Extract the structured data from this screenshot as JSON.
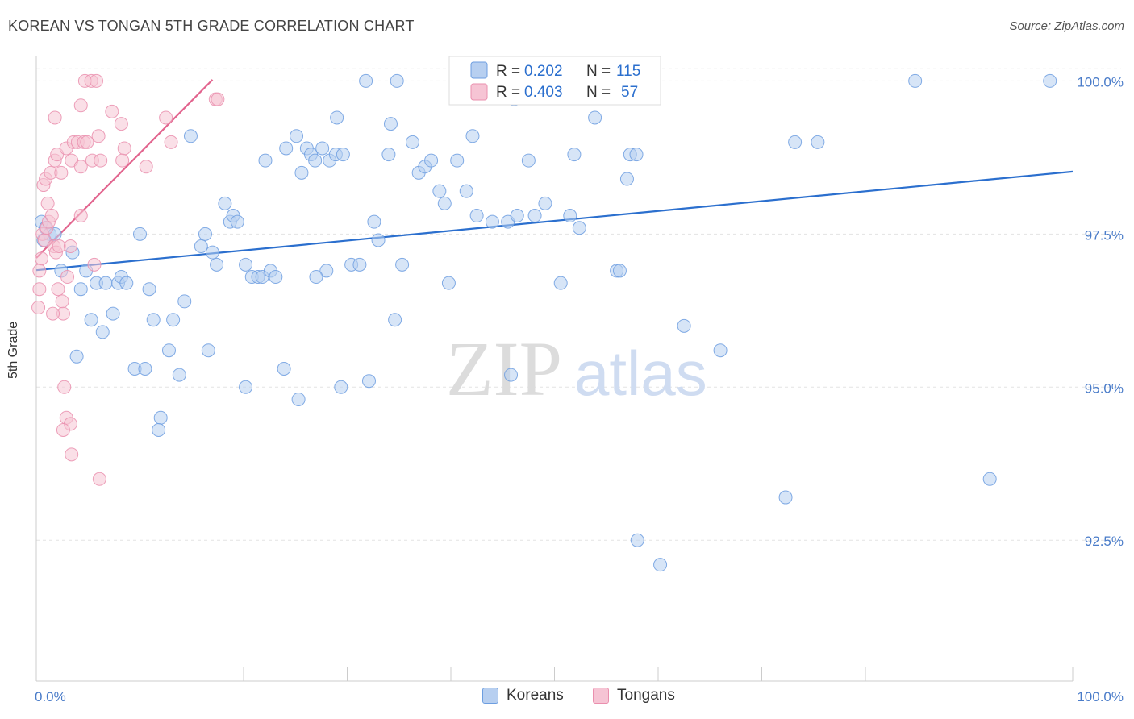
{
  "header": {
    "title": "KOREAN VS TONGAN 5TH GRADE CORRELATION CHART",
    "source": "Source: ZipAtlas.com"
  },
  "watermark": {
    "zip": "ZIP",
    "atlas": "atlas"
  },
  "colors": {
    "korean_fill": "#b7cff0",
    "korean_stroke": "#6d9ee0",
    "korean_line": "#2b6fce",
    "tongan_fill": "#f6c4d4",
    "tongan_stroke": "#ea8fae",
    "tongan_line": "#e2648e",
    "tick_text": "#4a7cc9"
  },
  "legend": {
    "korean": {
      "r_label": "R =",
      "r_value": "0.202",
      "n_label": "N =",
      "n_value": "115"
    },
    "tongan": {
      "r_label": "R =",
      "r_value": "0.403",
      "n_label": "N =",
      "n_value": "57"
    }
  },
  "bottom_legend": {
    "korean": "Koreans",
    "tongan": "Tongans"
  },
  "chart_data": {
    "type": "scatter",
    "title": "KOREAN VS TONGAN 5TH GRADE CORRELATION CHART",
    "xlabel": "",
    "ylabel": "5th Grade",
    "xlim": [
      0,
      100
    ],
    "ylim": [
      90.2,
      100.4
    ],
    "x_tick_labels": [
      "0.0%",
      "100.0%"
    ],
    "y_ticks": [
      92.5,
      95.0,
      97.5,
      100.0
    ],
    "y_tick_labels": [
      "92.5%",
      "95.0%",
      "97.5%",
      "100.0%"
    ],
    "grid": true,
    "legend_position": "top-center",
    "series": [
      {
        "name": "Koreans",
        "r": 0.202,
        "n": 115,
        "trend": {
          "x": [
            0.0,
            100.0
          ],
          "y": [
            96.91,
            98.52
          ]
        },
        "points": [
          [
            0.5,
            97.7
          ],
          [
            0.9,
            97.6
          ],
          [
            1.3,
            97.5
          ],
          [
            0.7,
            97.4
          ],
          [
            1.8,
            97.5
          ],
          [
            3.5,
            97.2
          ],
          [
            2.4,
            96.9
          ],
          [
            4.8,
            96.9
          ],
          [
            5.8,
            96.7
          ],
          [
            4.3,
            96.6
          ],
          [
            6.7,
            96.7
          ],
          [
            7.9,
            96.7
          ],
          [
            8.2,
            96.8
          ],
          [
            8.7,
            96.7
          ],
          [
            10.9,
            96.6
          ],
          [
            5.3,
            96.1
          ],
          [
            6.4,
            95.9
          ],
          [
            7.4,
            96.2
          ],
          [
            11.3,
            96.1
          ],
          [
            13.2,
            96.1
          ],
          [
            14.3,
            96.4
          ],
          [
            3.9,
            95.5
          ],
          [
            9.5,
            95.3
          ],
          [
            10.5,
            95.3
          ],
          [
            12.8,
            95.6
          ],
          [
            13.8,
            95.2
          ],
          [
            16.6,
            95.6
          ],
          [
            12.0,
            94.5
          ],
          [
            11.8,
            94.3
          ],
          [
            10.0,
            97.5
          ],
          [
            14.9,
            99.1
          ],
          [
            15.9,
            97.3
          ],
          [
            16.3,
            97.5
          ],
          [
            17.0,
            97.2
          ],
          [
            17.4,
            97.0
          ],
          [
            18.7,
            97.7
          ],
          [
            18.2,
            98.0
          ],
          [
            19.0,
            97.8
          ],
          [
            19.4,
            97.7
          ],
          [
            20.2,
            97.0
          ],
          [
            20.8,
            96.8
          ],
          [
            21.4,
            96.8
          ],
          [
            21.8,
            96.8
          ],
          [
            22.6,
            96.9
          ],
          [
            23.1,
            96.8
          ],
          [
            22.1,
            98.7
          ],
          [
            24.1,
            98.9
          ],
          [
            25.1,
            99.1
          ],
          [
            25.6,
            98.5
          ],
          [
            26.1,
            98.9
          ],
          [
            26.5,
            98.8
          ],
          [
            26.9,
            98.7
          ],
          [
            27.6,
            98.9
          ],
          [
            28.3,
            98.7
          ],
          [
            28.9,
            98.8
          ],
          [
            29.6,
            98.8
          ],
          [
            29.0,
            99.4
          ],
          [
            30.4,
            97.0
          ],
          [
            31.2,
            97.0
          ],
          [
            28.0,
            96.9
          ],
          [
            27.0,
            96.8
          ],
          [
            23.9,
            95.3
          ],
          [
            25.3,
            94.8
          ],
          [
            20.2,
            95.0
          ],
          [
            31.8,
            100.0
          ],
          [
            34.0,
            98.8
          ],
          [
            34.2,
            99.3
          ],
          [
            34.8,
            100.0
          ],
          [
            32.6,
            97.7
          ],
          [
            36.3,
            99.0
          ],
          [
            36.9,
            98.5
          ],
          [
            37.5,
            98.6
          ],
          [
            38.1,
            98.7
          ],
          [
            38.9,
            98.2
          ],
          [
            39.4,
            98.0
          ],
          [
            40.6,
            98.7
          ],
          [
            41.5,
            98.2
          ],
          [
            42.1,
            99.1
          ],
          [
            42.5,
            97.8
          ],
          [
            43.9,
            100.0
          ],
          [
            44.0,
            97.7
          ],
          [
            45.5,
            97.7
          ],
          [
            46.1,
            99.7
          ],
          [
            46.4,
            97.8
          ],
          [
            47.5,
            98.7
          ],
          [
            48.1,
            97.8
          ],
          [
            49.1,
            98.0
          ],
          [
            51.5,
            97.8
          ],
          [
            51.9,
            98.8
          ],
          [
            50.6,
            96.7
          ],
          [
            52.4,
            97.6
          ],
          [
            53.4,
            100.0
          ],
          [
            53.9,
            99.4
          ],
          [
            56.0,
            96.9
          ],
          [
            57.0,
            98.4
          ],
          [
            57.3,
            98.8
          ],
          [
            57.9,
            98.8
          ],
          [
            56.3,
            96.9
          ],
          [
            33.0,
            97.4
          ],
          [
            35.3,
            97.0
          ],
          [
            39.8,
            96.7
          ],
          [
            34.6,
            96.1
          ],
          [
            29.4,
            95.0
          ],
          [
            32.1,
            95.1
          ],
          [
            45.8,
            95.2
          ],
          [
            62.5,
            96.0
          ],
          [
            66.0,
            95.6
          ],
          [
            73.2,
            99.0
          ],
          [
            75.4,
            99.0
          ],
          [
            84.8,
            100.0
          ],
          [
            97.8,
            100.0
          ],
          [
            92.0,
            93.5
          ],
          [
            72.3,
            93.2
          ],
          [
            58.0,
            92.5
          ],
          [
            60.2,
            92.1
          ]
        ]
      },
      {
        "name": "Tongans",
        "r": 0.403,
        "n": 57,
        "trend": {
          "x": [
            0.0,
            17.0
          ],
          "y": [
            97.11,
            100.02
          ]
        },
        "points": [
          [
            0.2,
            96.3
          ],
          [
            0.3,
            96.6
          ],
          [
            0.3,
            96.9
          ],
          [
            0.5,
            97.1
          ],
          [
            0.6,
            97.5
          ],
          [
            0.8,
            97.4
          ],
          [
            1.0,
            97.6
          ],
          [
            1.2,
            97.7
          ],
          [
            1.5,
            97.8
          ],
          [
            1.7,
            97.3
          ],
          [
            1.9,
            97.2
          ],
          [
            2.2,
            97.3
          ],
          [
            2.1,
            96.6
          ],
          [
            2.5,
            96.4
          ],
          [
            2.6,
            96.2
          ],
          [
            1.6,
            96.2
          ],
          [
            3.0,
            96.8
          ],
          [
            0.7,
            98.3
          ],
          [
            0.9,
            98.4
          ],
          [
            1.1,
            98.0
          ],
          [
            1.4,
            98.5
          ],
          [
            1.8,
            98.7
          ],
          [
            2.0,
            98.8
          ],
          [
            2.4,
            98.5
          ],
          [
            2.9,
            98.9
          ],
          [
            3.4,
            98.7
          ],
          [
            3.6,
            99.0
          ],
          [
            4.0,
            99.0
          ],
          [
            4.3,
            98.6
          ],
          [
            4.6,
            99.0
          ],
          [
            4.9,
            99.0
          ],
          [
            5.4,
            98.7
          ],
          [
            6.0,
            99.1
          ],
          [
            6.2,
            98.7
          ],
          [
            7.3,
            99.5
          ],
          [
            8.2,
            99.3
          ],
          [
            8.5,
            98.9
          ],
          [
            8.3,
            98.7
          ],
          [
            10.6,
            98.6
          ],
          [
            12.5,
            99.4
          ],
          [
            13.0,
            99.0
          ],
          [
            3.3,
            97.3
          ],
          [
            4.3,
            97.8
          ],
          [
            5.6,
            97.0
          ],
          [
            4.7,
            100.0
          ],
          [
            5.3,
            100.0
          ],
          [
            5.8,
            100.0
          ],
          [
            4.3,
            99.6
          ],
          [
            1.8,
            99.4
          ],
          [
            17.3,
            99.7
          ],
          [
            17.5,
            99.7
          ],
          [
            2.7,
            95.0
          ],
          [
            2.9,
            94.5
          ],
          [
            3.3,
            94.4
          ],
          [
            2.6,
            94.3
          ],
          [
            3.4,
            93.9
          ],
          [
            6.1,
            93.5
          ]
        ]
      }
    ]
  }
}
